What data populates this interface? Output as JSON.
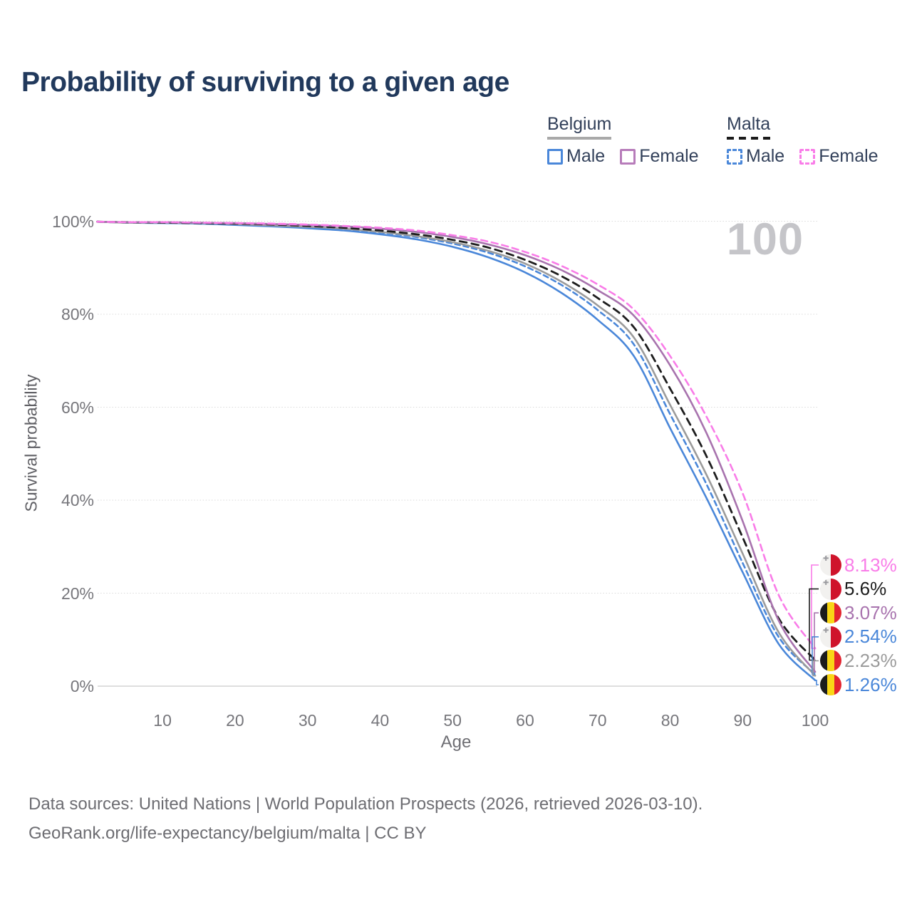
{
  "title": "Probability of surviving to a given age",
  "watermark": "100",
  "legend": {
    "groups": [
      {
        "id": "belgium",
        "label": "Belgium",
        "line_style": "solid",
        "rule_color": "#a9a9a9",
        "items": [
          {
            "label": "Male",
            "color": "#4a87d9",
            "dashed": false
          },
          {
            "label": "Female",
            "color": "#b77cba",
            "dashed": false
          }
        ]
      },
      {
        "id": "malta",
        "label": "Malta",
        "line_style": "dashed",
        "rule_color": "#1b1b1b",
        "items": [
          {
            "label": "Male",
            "color": "#4a87d9",
            "dashed": true
          },
          {
            "label": "Female",
            "color": "#f97ce8",
            "dashed": true
          }
        ]
      }
    ]
  },
  "y_axis": {
    "label": "Survival probability",
    "ticks": [
      "100%",
      "80%",
      "60%",
      "40%",
      "20%",
      "0%"
    ],
    "tick_values": [
      100,
      80,
      60,
      40,
      20,
      0
    ]
  },
  "x_axis": {
    "label": "Age",
    "ticks": [
      10,
      20,
      30,
      40,
      50,
      60,
      70,
      80,
      90,
      100
    ]
  },
  "end_labels": [
    {
      "flag": "malta",
      "series": "malta_female",
      "value_text": "8.13%",
      "value": 8.13,
      "color": "#f97ce8"
    },
    {
      "flag": "malta",
      "series": "malta_both",
      "value_text": "5.6%",
      "value": 5.6,
      "color": "#1d1d1d"
    },
    {
      "flag": "belgium",
      "series": "belgium_female",
      "value_text": "3.07%",
      "value": 3.07,
      "color": "#a873ae"
    },
    {
      "flag": "malta",
      "series": "malta_male",
      "value_text": "2.54%",
      "value": 2.54,
      "color": "#4a87d9"
    },
    {
      "flag": "belgium",
      "series": "belgium_both",
      "value_text": "2.23%",
      "value": 2.23,
      "color": "#9b9b9b"
    },
    {
      "flag": "belgium",
      "series": "belgium_male",
      "value_text": "1.26%",
      "value": 1.26,
      "color": "#4a87d9"
    }
  ],
  "footer": {
    "line1": "Data sources: United Nations | World Population Prospects (2026, retrieved 2026-03-10).",
    "line2": "GeoRank.org/life-expectancy/belgium/malta | CC BY"
  },
  "chart_data": {
    "type": "line",
    "title": "Probability of surviving to a given age",
    "xlabel": "Age",
    "ylabel": "Survival probability",
    "xlim": [
      1,
      100
    ],
    "ylim": [
      0,
      100
    ],
    "grid": "horizontal-dotted",
    "legend_position": "top-right",
    "x": [
      1,
      5,
      10,
      15,
      20,
      25,
      30,
      35,
      40,
      45,
      50,
      55,
      60,
      65,
      70,
      75,
      80,
      85,
      90,
      95,
      100
    ],
    "series": [
      {
        "id": "belgium_male",
        "name": "Belgium Male",
        "country": "Belgium",
        "sex": "Male",
        "color": "#4a87d9",
        "dash": null,
        "values": [
          99.9,
          99.7,
          99.6,
          99.5,
          99.2,
          98.9,
          98.5,
          98.0,
          97.2,
          96.1,
          94.5,
          92.2,
          89.0,
          84.6,
          78.8,
          71.0,
          55.5,
          40.5,
          24.5,
          9.0,
          1.26
        ]
      },
      {
        "id": "malta_male",
        "name": "Malta Male",
        "country": "Malta",
        "sex": "Male",
        "color": "#4a87d9",
        "dash": "7 5",
        "values": [
          99.9,
          99.7,
          99.7,
          99.6,
          99.4,
          99.1,
          98.8,
          98.3,
          97.6,
          96.6,
          95.2,
          93.2,
          90.3,
          86.3,
          80.9,
          73.5,
          58.5,
          43.5,
          26.5,
          10.5,
          2.54
        ]
      },
      {
        "id": "belgium_both",
        "name": "Belgium",
        "country": "Belgium",
        "sex": "Both",
        "color": "#9b9b9b",
        "dash": null,
        "values": [
          99.9,
          99.7,
          99.7,
          99.6,
          99.4,
          99.1,
          98.8,
          98.4,
          97.7,
          96.8,
          95.5,
          93.6,
          90.9,
          87.0,
          81.9,
          75.0,
          60.5,
          45.5,
          28.5,
          11.5,
          2.23
        ]
      },
      {
        "id": "malta_both",
        "name": "Malta",
        "country": "Malta",
        "sex": "Both",
        "color": "#1d1d1d",
        "dash": "10 7",
        "values": [
          99.9,
          99.8,
          99.7,
          99.6,
          99.5,
          99.3,
          99.0,
          98.6,
          98.0,
          97.2,
          96.0,
          94.3,
          91.7,
          88.2,
          83.5,
          77.2,
          64.0,
          49.5,
          32.0,
          14.5,
          5.6
        ]
      },
      {
        "id": "belgium_female",
        "name": "Belgium Female",
        "country": "Belgium",
        "sex": "Female",
        "color": "#a873ae",
        "dash": null,
        "values": [
          99.9,
          99.8,
          99.8,
          99.7,
          99.6,
          99.4,
          99.2,
          98.9,
          98.4,
          97.7,
          96.6,
          95.0,
          92.7,
          89.5,
          85.2,
          79.7,
          69.0,
          54.5,
          35.5,
          14.0,
          3.07
        ]
      },
      {
        "id": "malta_female",
        "name": "Malta Female",
        "country": "Malta",
        "sex": "Female",
        "color": "#f97ce8",
        "dash": "9 6",
        "values": [
          99.9,
          99.8,
          99.8,
          99.7,
          99.6,
          99.5,
          99.3,
          99.0,
          98.6,
          98.0,
          97.0,
          95.6,
          93.4,
          90.4,
          86.4,
          81.0,
          71.0,
          58.0,
          41.5,
          19.5,
          8.13
        ]
      }
    ]
  }
}
